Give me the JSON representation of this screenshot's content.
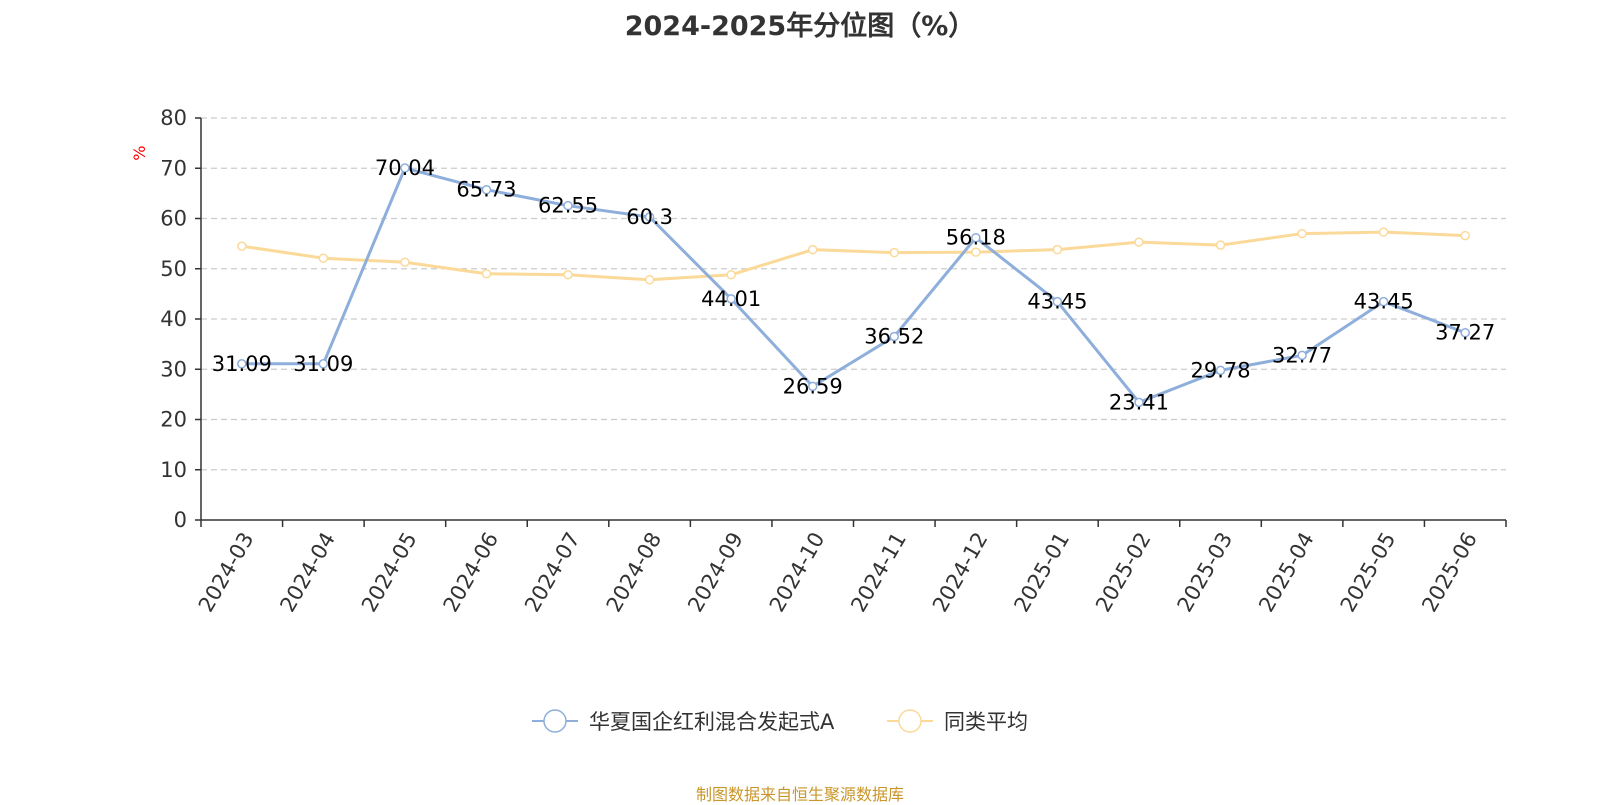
{
  "chart_data": {
    "type": "line",
    "title": "2024-2025年分位图（%）",
    "ylabel": "%",
    "xlabel": "",
    "ylim": [
      0,
      80
    ],
    "yticks": [
      0,
      10,
      20,
      30,
      40,
      50,
      60,
      70,
      80
    ],
    "grid": true,
    "legend_position": "bottom",
    "categories": [
      "2024-03",
      "2024-04",
      "2024-05",
      "2024-06",
      "2024-07",
      "2024-08",
      "2024-09",
      "2024-10",
      "2024-11",
      "2024-12",
      "2025-01",
      "2025-02",
      "2025-03",
      "2025-04",
      "2025-05",
      "2025-06"
    ],
    "series": [
      {
        "name": "华夏国企红利混合发起式A",
        "color": "#8eaedb",
        "show_labels": true,
        "values": [
          31.09,
          31.09,
          70.04,
          65.73,
          62.55,
          60.3,
          44.01,
          26.59,
          36.52,
          56.18,
          43.45,
          23.41,
          29.78,
          32.77,
          43.45,
          37.27
        ],
        "labels": [
          "31.09",
          "31.09",
          "70.04",
          "65.73",
          "62.55",
          "60.3",
          "44.01",
          "26.59",
          "36.52",
          "56.18",
          "43.45",
          "23.41",
          "29.78",
          "32.77",
          "43.45",
          "37.27"
        ]
      },
      {
        "name": "同类平均",
        "color": "#fbd999",
        "show_labels": false,
        "values": [
          54.5,
          52.1,
          51.3,
          49.0,
          48.8,
          47.8,
          48.8,
          53.8,
          53.2,
          53.3,
          53.8,
          55.3,
          54.7,
          57.0,
          57.3,
          56.6
        ]
      }
    ],
    "source": "制图数据来自恒生聚源数据库"
  }
}
